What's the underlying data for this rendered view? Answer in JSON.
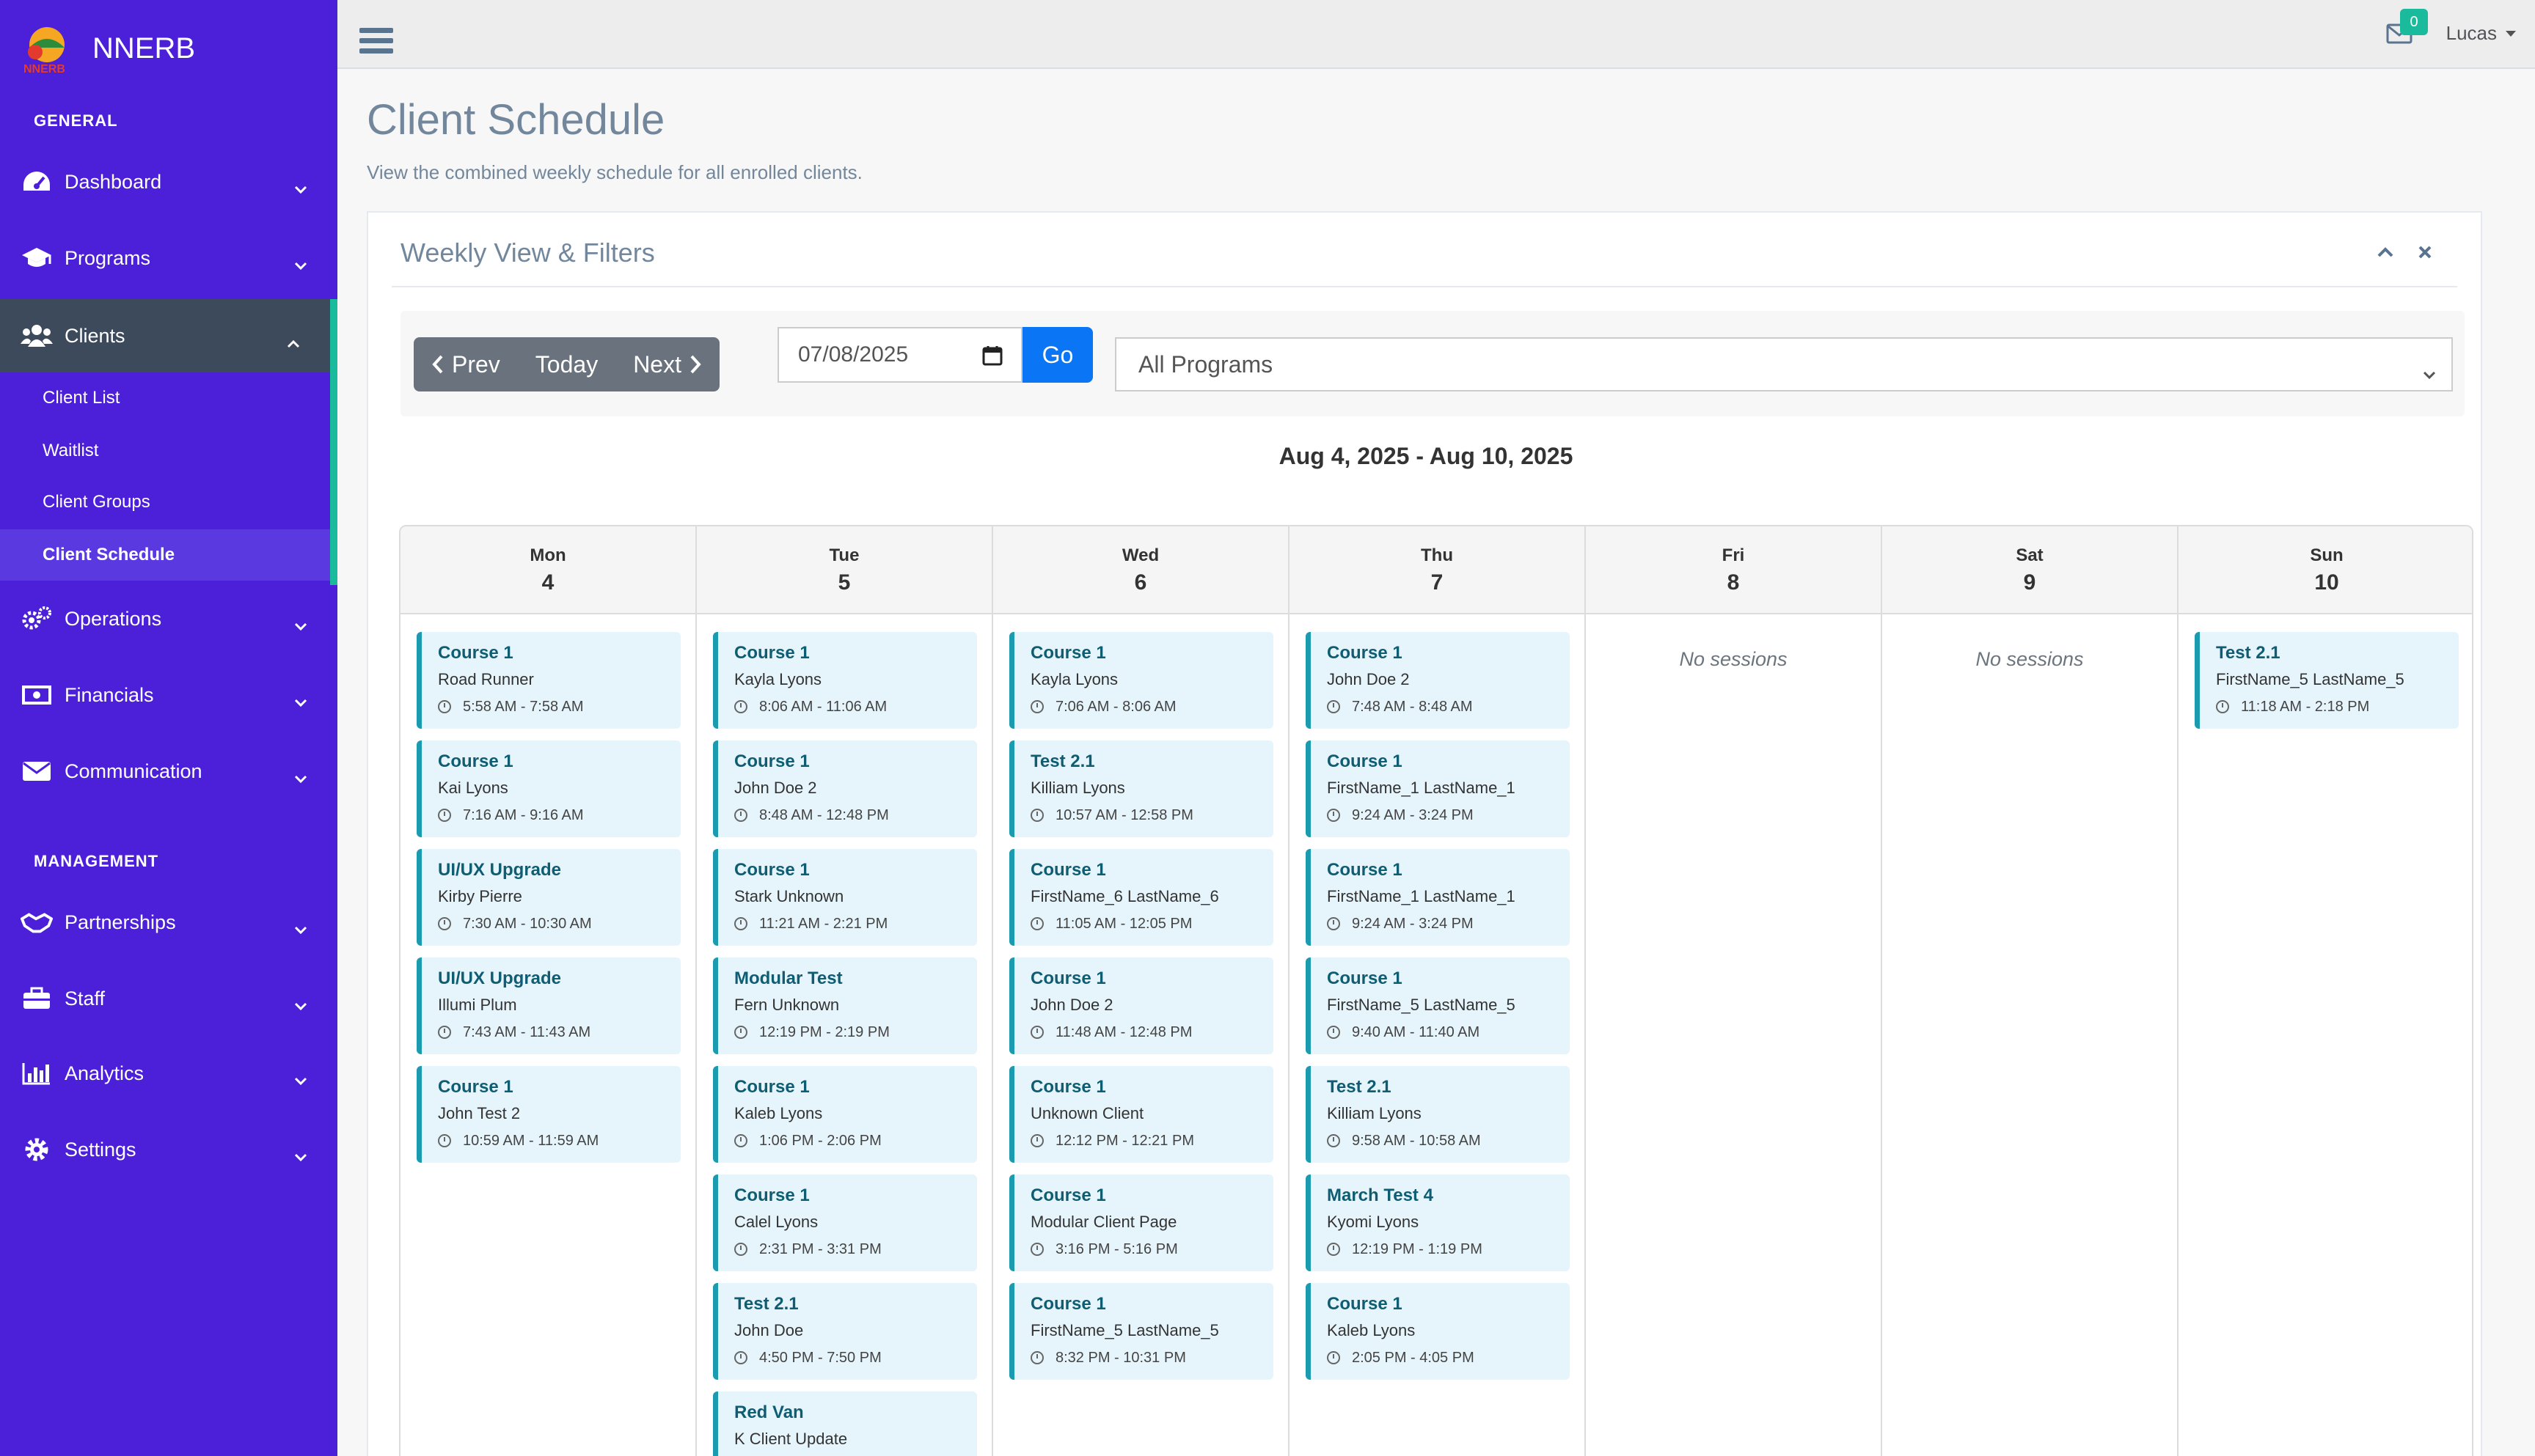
{
  "app": {
    "name": "NNERB",
    "logo_text": "NNERB"
  },
  "sidebar": {
    "general_label": "GENERAL",
    "management_label": "MANAGEMENT",
    "general_items": [
      {
        "label": "Dashboard",
        "icon": "dashboard-icon"
      },
      {
        "label": "Programs",
        "icon": "graduation-cap-icon"
      },
      {
        "label": "Clients",
        "icon": "users-icon"
      }
    ],
    "client_submenu": [
      {
        "label": "Client List"
      },
      {
        "label": "Waitlist"
      },
      {
        "label": "Client Groups"
      },
      {
        "label": "Client Schedule"
      }
    ],
    "general_items_after": [
      {
        "label": "Operations",
        "icon": "cogs-icon"
      },
      {
        "label": "Financials",
        "icon": "money-icon"
      },
      {
        "label": "Communication",
        "icon": "envelope-icon"
      }
    ],
    "management_items": [
      {
        "label": "Partnerships",
        "icon": "handshake-icon"
      },
      {
        "label": "Staff",
        "icon": "briefcase-icon"
      },
      {
        "label": "Analytics",
        "icon": "bar-chart-icon"
      },
      {
        "label": "Settings",
        "icon": "gear-icon"
      }
    ]
  },
  "topnav": {
    "mail_count": "0",
    "user_name": "Lucas"
  },
  "page": {
    "title": "Client Schedule",
    "subtitle": "View the combined weekly schedule for all enrolled clients."
  },
  "panel": {
    "title": "Weekly View & Filters",
    "prev_label": "Prev",
    "today_label": "Today",
    "next_label": "Next",
    "date_value": "07/08/2025",
    "go_label": "Go",
    "program_filter": "All Programs",
    "week_range": "Aug 4, 2025 - Aug 10, 2025",
    "no_sessions_label": "No sessions"
  },
  "calendar": {
    "days": [
      {
        "name": "Mon",
        "num": "4",
        "sessions": [
          {
            "title": "Course 1",
            "client": "Road Runner",
            "time": "5:58 AM - 7:58 AM"
          },
          {
            "title": "Course 1",
            "client": "Kai Lyons",
            "time": "7:16 AM - 9:16 AM"
          },
          {
            "title": "UI/UX Upgrade",
            "client": "Kirby Pierre",
            "time": "7:30 AM - 10:30 AM"
          },
          {
            "title": "UI/UX Upgrade",
            "client": "Illumi Plum",
            "time": "7:43 AM - 11:43 AM"
          },
          {
            "title": "Course 1",
            "client": "John Test 2",
            "time": "10:59 AM - 11:59 AM"
          }
        ]
      },
      {
        "name": "Tue",
        "num": "5",
        "sessions": [
          {
            "title": "Course 1",
            "client": "Kayla Lyons",
            "time": "8:06 AM - 11:06 AM"
          },
          {
            "title": "Course 1",
            "client": "John Doe 2",
            "time": "8:48 AM - 12:48 PM"
          },
          {
            "title": "Course 1",
            "client": "Stark Unknown",
            "time": "11:21 AM - 2:21 PM"
          },
          {
            "title": "Modular Test",
            "client": "Fern Unknown",
            "time": "12:19 PM - 2:19 PM"
          },
          {
            "title": "Course 1",
            "client": "Kaleb Lyons",
            "time": "1:06 PM - 2:06 PM"
          },
          {
            "title": "Course 1",
            "client": "Calel Lyons",
            "time": "2:31 PM - 3:31 PM"
          },
          {
            "title": "Test 2.1",
            "client": "John Doe",
            "time": "4:50 PM - 7:50 PM"
          },
          {
            "title": "Red Van",
            "client": "K Client Update",
            "time": ""
          }
        ]
      },
      {
        "name": "Wed",
        "num": "6",
        "sessions": [
          {
            "title": "Course 1",
            "client": "Kayla Lyons",
            "time": "7:06 AM - 8:06 AM"
          },
          {
            "title": "Test 2.1",
            "client": "Killiam Lyons",
            "time": "10:57 AM - 12:58 PM"
          },
          {
            "title": "Course 1",
            "client": "FirstName_6 LastName_6",
            "time": "11:05 AM - 12:05 PM"
          },
          {
            "title": "Course 1",
            "client": "John Doe 2",
            "time": "11:48 AM - 12:48 PM"
          },
          {
            "title": "Course 1",
            "client": "Unknown Client",
            "time": "12:12 PM - 12:21 PM"
          },
          {
            "title": "Course 1",
            "client": "Modular Client Page",
            "time": "3:16 PM - 5:16 PM"
          },
          {
            "title": "Course 1",
            "client": "FirstName_5 LastName_5",
            "time": "8:32 PM - 10:31 PM"
          }
        ]
      },
      {
        "name": "Thu",
        "num": "7",
        "sessions": [
          {
            "title": "Course 1",
            "client": "John Doe 2",
            "time": "7:48 AM - 8:48 AM"
          },
          {
            "title": "Course 1",
            "client": "FirstName_1 LastName_1",
            "time": "9:24 AM - 3:24 PM"
          },
          {
            "title": "Course 1",
            "client": "FirstName_1 LastName_1",
            "time": "9:24 AM - 3:24 PM"
          },
          {
            "title": "Course 1",
            "client": "FirstName_5 LastName_5",
            "time": "9:40 AM - 11:40 AM"
          },
          {
            "title": "Test 2.1",
            "client": "Killiam Lyons",
            "time": "9:58 AM - 10:58 AM"
          },
          {
            "title": "March Test 4",
            "client": "Kyomi Lyons",
            "time": "12:19 PM - 1:19 PM"
          },
          {
            "title": "Course 1",
            "client": "Kaleb Lyons",
            "time": "2:05 PM - 4:05 PM"
          }
        ]
      },
      {
        "name": "Fri",
        "num": "8",
        "sessions": []
      },
      {
        "name": "Sat",
        "num": "9",
        "sessions": []
      },
      {
        "name": "Sun",
        "num": "10",
        "sessions": [
          {
            "title": "Test 2.1",
            "client": "FirstName_5 LastName_5",
            "time": "11:18 AM - 2:18 PM"
          }
        ]
      }
    ]
  },
  "colors": {
    "sidebar": "#4c1fd8",
    "accent": "#1abb9c",
    "go_button": "#0b76f5",
    "session_bg": "#e6f5fc",
    "session_border": "#1a9bb0"
  }
}
